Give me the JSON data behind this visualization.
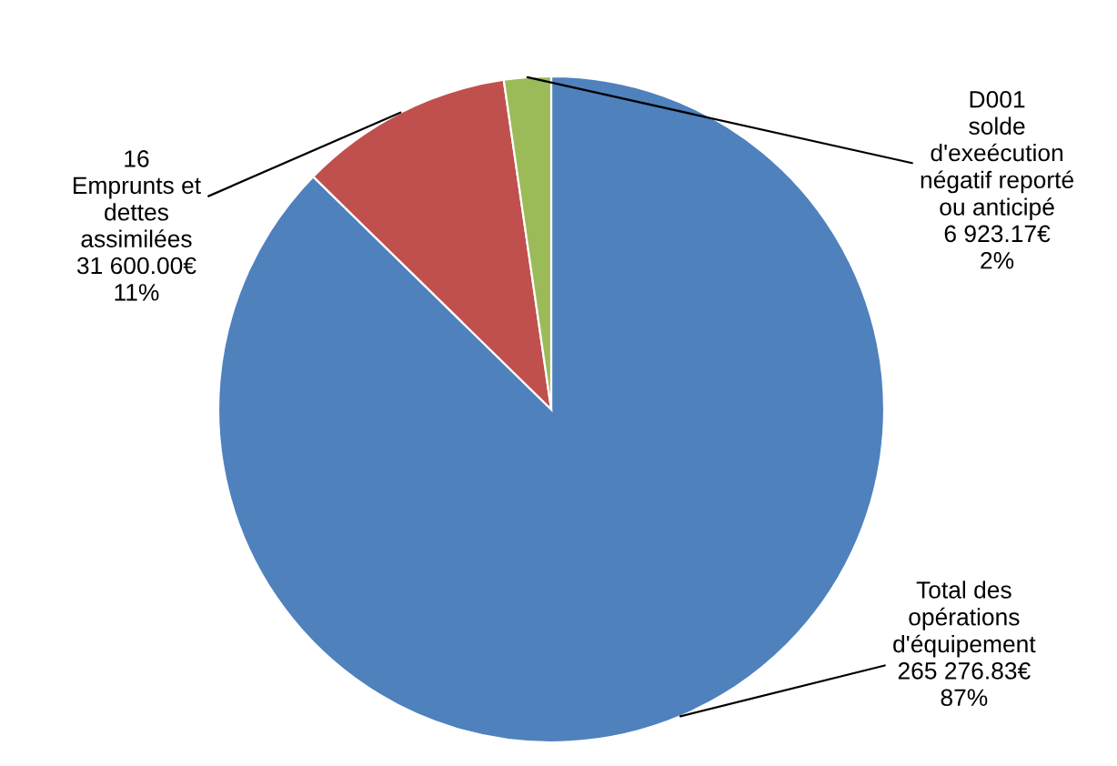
{
  "chart_data": {
    "type": "pie",
    "categories": [
      "Total des\nopérations\nd'équipement",
      "16\nEmprunts et\ndettes\nassimilées",
      "D001\nsolde\nd'exeécution\nnégatif reporté\nou anticipé"
    ],
    "values": [
      265276.83,
      31600.0,
      6923.17
    ],
    "colors": [
      "#4f81bd",
      "#c0504d",
      "#9bbb59"
    ],
    "value_labels": [
      "265 276.83€\n87%",
      "31 600.00€\n11%",
      "6 923.17€\n2%"
    ],
    "legend": false
  }
}
